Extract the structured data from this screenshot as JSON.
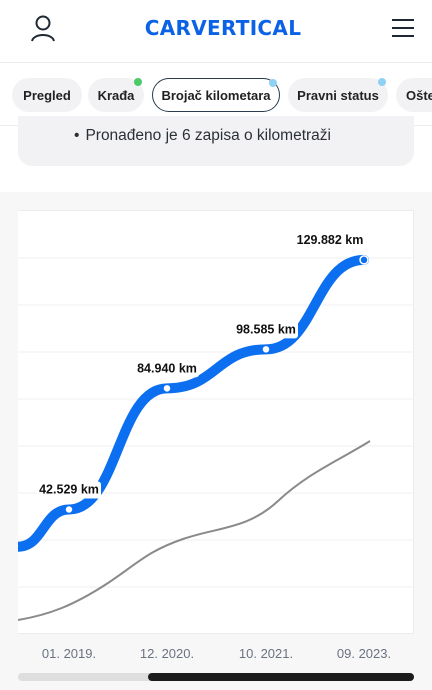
{
  "header": {
    "logo": "CARVERTICAL",
    "user_icon": "user-icon",
    "menu_icon": "hamburger-menu-icon",
    "brand_color": "#0b62e6"
  },
  "tabs": [
    {
      "label": "Pregled",
      "active": false,
      "dot": null
    },
    {
      "label": "Krađa",
      "active": false,
      "dot": "#4cc96a"
    },
    {
      "label": "Brojač kilometara",
      "active": true,
      "dot": "#8fd0f5"
    },
    {
      "label": "Pravni status",
      "active": false,
      "dot": "#8fd0f5"
    },
    {
      "label": "Ošte",
      "active": false,
      "dot": null
    }
  ],
  "summary": {
    "text": "Pronađeno je 6 zapisa o kilometraži"
  },
  "chart_data": {
    "type": "line",
    "x_ticks": [
      "01. 2019.",
      "12. 2020.",
      "10. 2021.",
      "09. 2023."
    ],
    "series": [
      {
        "color": "#0b6ff0",
        "points": [
          {
            "x": "01. 2019.",
            "value": 42529,
            "label": "42.529 km"
          },
          {
            "x": "12. 2020.",
            "value": 84940,
            "label": "84.940 km"
          },
          {
            "x": "10. 2021.",
            "value": 98585,
            "label": "98.585 km"
          },
          {
            "x": "09. 2023.",
            "value": 129882,
            "label": "129.882 km"
          }
        ]
      },
      {
        "color": "#8a8a8a",
        "points": []
      }
    ],
    "grid": true
  },
  "scrollbar": {
    "position": 0.35
  }
}
